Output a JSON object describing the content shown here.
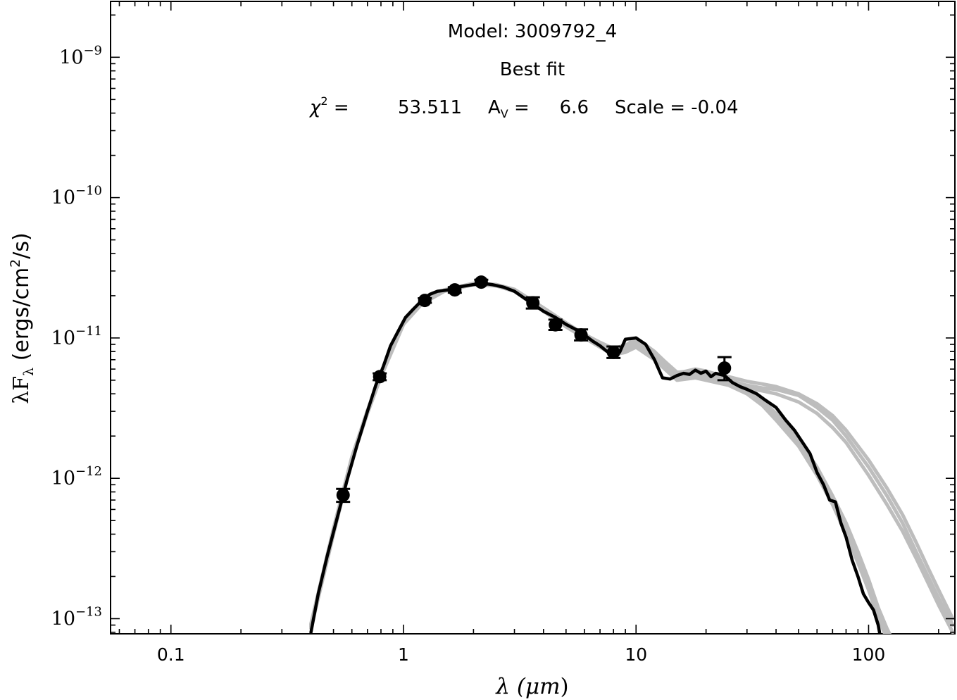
{
  "chart_data": {
    "type": "line",
    "title_lines": {
      "model_label": "Model: 3009792_4",
      "fit_label": "Best fit",
      "chi2_label": "χ",
      "chi2_exp": "2",
      "chi2_eq": " =",
      "chi2_value": "53.511",
      "av_label": "A",
      "av_sub": "V",
      "av_eq": " =",
      "av_value": "6.6",
      "scale_text": "Scale = -0.04"
    },
    "xlabel": {
      "prefix": "λ (",
      "unit": "μm",
      "suffix": ")"
    },
    "ylabel": {
      "main": "λF",
      "sub": "λ",
      "mid": " (ergs/cm",
      "sup": "2",
      "end": "/s)"
    },
    "xscale": "log",
    "yscale": "log",
    "xlim": [
      0.055,
      235
    ],
    "ylim": [
      7.8e-14,
      2.5e-09
    ],
    "x_ticks": [
      {
        "value": 0.1,
        "label": "0.1"
      },
      {
        "value": 1,
        "label": "1"
      },
      {
        "value": 10,
        "label": "10"
      },
      {
        "value": 100,
        "label": "100"
      }
    ],
    "y_ticks": [
      {
        "value": 1e-13,
        "base": "10",
        "exp": "−13"
      },
      {
        "value": 1e-12,
        "base": "10",
        "exp": "−12"
      },
      {
        "value": 1e-11,
        "base": "10",
        "exp": "−11"
      },
      {
        "value": 1e-10,
        "base": "10",
        "exp": "−10"
      },
      {
        "value": 1e-09,
        "base": "10",
        "exp": "−9"
      }
    ],
    "grid": false,
    "colors": {
      "best_fit": "#000000",
      "other_fits": "#bdbdbd",
      "points": "#000000"
    },
    "observed_points": [
      {
        "x": 0.55,
        "y": 7.6e-13,
        "yerr_lo": 6.8e-13,
        "yerr_hi": 8.4e-13
      },
      {
        "x": 0.79,
        "y": 5.3e-12,
        "yerr_lo": 5e-12,
        "yerr_hi": 5.6e-12
      },
      {
        "x": 1.235,
        "y": 1.85e-11,
        "yerr_lo": 1.78e-11,
        "yerr_hi": 1.92e-11
      },
      {
        "x": 1.662,
        "y": 2.2e-11,
        "yerr_lo": 2.1e-11,
        "yerr_hi": 2.3e-11
      },
      {
        "x": 2.159,
        "y": 2.5e-11,
        "yerr_lo": 2.4e-11,
        "yerr_hi": 2.6e-11
      },
      {
        "x": 3.6,
        "y": 1.78e-11,
        "yerr_lo": 1.62e-11,
        "yerr_hi": 1.95e-11
      },
      {
        "x": 4.5,
        "y": 1.24e-11,
        "yerr_lo": 1.14e-11,
        "yerr_hi": 1.35e-11
      },
      {
        "x": 5.8,
        "y": 1.05e-11,
        "yerr_lo": 9.6e-12,
        "yerr_hi": 1.15e-11
      },
      {
        "x": 8.0,
        "y": 7.9e-12,
        "yerr_lo": 7.2e-12,
        "yerr_hi": 8.7e-12
      },
      {
        "x": 24.0,
        "y": 6.1e-12,
        "yerr_lo": 5e-12,
        "yerr_hi": 7.3e-12
      }
    ],
    "best_fit": {
      "x": [
        0.4,
        0.43,
        0.47,
        0.52,
        0.57,
        0.63,
        0.7,
        0.76,
        0.82,
        0.88,
        0.95,
        1.02,
        1.1,
        1.2,
        1.3,
        1.4,
        1.55,
        1.7,
        1.85,
        2.0,
        2.2,
        2.4,
        2.7,
        3.0,
        3.5,
        4.0,
        4.5,
        5.0,
        5.5,
        6.0,
        6.5,
        7.0,
        7.5,
        8.0,
        8.5,
        9.0,
        10.0,
        11.0,
        12.0,
        13.0,
        14.0,
        15.0,
        16.0,
        17.0,
        18.0,
        19.0,
        20.0,
        21.0,
        22.0,
        24.0,
        26.0,
        28.0,
        30.0,
        33.0,
        36.0,
        40.0,
        44.0,
        48.0,
        52.0,
        56.0,
        60.0,
        64.0,
        68.0,
        72.0,
        76.0,
        80.0,
        85.0,
        90.0,
        95.0,
        100.0,
        105.0,
        110.0,
        115.0
      ],
      "y": [
        8e-14,
        1.5e-13,
        2.8e-13,
        5.3e-13,
        9.5e-13,
        1.7e-12,
        3e-12,
        4.6e-12,
        6.3e-12,
        8.8e-12,
        1.12e-11,
        1.4e-11,
        1.6e-11,
        1.85e-11,
        2.05e-11,
        2.15e-11,
        2.2e-11,
        2.3e-11,
        2.35e-11,
        2.4e-11,
        2.45e-11,
        2.4e-11,
        2.3e-11,
        2.15e-11,
        1.8e-11,
        1.55e-11,
        1.4e-11,
        1.25e-11,
        1.15e-11,
        1.05e-11,
        9.5e-12,
        8.8e-12,
        8e-12,
        7.7e-12,
        7.9e-12,
        9.8e-12,
        1e-11,
        9e-12,
        7e-12,
        5.2e-12,
        5.1e-12,
        5.4e-12,
        5.6e-12,
        5.5e-12,
        5.9e-12,
        5.6e-12,
        5.8e-12,
        5.3e-12,
        5.6e-12,
        5.4e-12,
        4.8e-12,
        4.5e-12,
        4.3e-12,
        4e-12,
        3.6e-12,
        3.2e-12,
        2.6e-12,
        2.2e-12,
        1.8e-12,
        1.5e-12,
        1.1e-12,
        9e-13,
        7e-13,
        6.8e-13,
        4.8e-13,
        3.8e-13,
        2.6e-13,
        2e-13,
        1.5e-13,
        1.3e-13,
        1.15e-13,
        9e-14,
        6e-14
      ]
    },
    "other_fits": [
      {
        "x": [
          0.4,
          0.5,
          0.6,
          0.7,
          0.8,
          1.0,
          1.2,
          1.5,
          2.0,
          2.5,
          3.0,
          4.0,
          5.0,
          6.0,
          7.0,
          8.0,
          9.0,
          10.0,
          12.0,
          15.0,
          18.0,
          20.0,
          25.0,
          30.0,
          35.0,
          40.0,
          50.0,
          60.0,
          70.0,
          80.0,
          90.0,
          100.0,
          110.0,
          120.0,
          130.0
        ],
        "y": [
          9e-14,
          4.3e-13,
          1.4e-12,
          3e-12,
          5.5e-12,
          1.3e-11,
          1.8e-11,
          2.2e-11,
          2.45e-11,
          2.4e-11,
          2.2e-11,
          1.6e-11,
          1.25e-11,
          1.05e-11,
          9.2e-12,
          8.2e-12,
          8.8e-12,
          1e-11,
          8e-12,
          5.6e-12,
          6e-12,
          5.8e-12,
          5.2e-12,
          4.4e-12,
          3.6e-12,
          2.9e-12,
          1.9e-12,
          1.2e-12,
          7.5e-13,
          4.8e-13,
          3e-13,
          1.9e-13,
          1.2e-13,
          8.5e-14,
          6.5e-14
        ]
      },
      {
        "x": [
          0.4,
          0.5,
          0.6,
          0.7,
          0.8,
          1.0,
          1.2,
          1.5,
          2.0,
          2.5,
          3.0,
          4.0,
          5.0,
          6.0,
          7.0,
          8.0,
          9.0,
          10.0,
          12.0,
          15.0,
          18.0,
          20.0,
          25.0,
          30.0,
          35.0,
          40.0,
          50.0,
          60.0,
          70.0,
          80.0,
          90.0,
          100.0,
          110.0,
          120.0
        ],
        "y": [
          8.5e-14,
          4e-13,
          1.35e-12,
          2.9e-12,
          5.3e-12,
          1.25e-11,
          1.75e-11,
          2.15e-11,
          2.4e-11,
          2.35e-11,
          2.15e-11,
          1.55e-11,
          1.2e-11,
          1e-11,
          8.6e-12,
          7.6e-12,
          7.9e-12,
          8.6e-12,
          7e-12,
          5e-12,
          5.2e-12,
          5e-12,
          4.6e-12,
          4e-12,
          3.3e-12,
          2.6e-12,
          1.7e-12,
          1.05e-12,
          6.5e-13,
          4e-13,
          2.5e-13,
          1.6e-13,
          1e-13,
          7.2e-14
        ]
      },
      {
        "x": [
          0.4,
          0.5,
          0.6,
          0.7,
          0.8,
          1.0,
          1.2,
          1.5,
          2.0,
          2.5,
          3.0,
          4.0,
          5.0,
          6.0,
          7.0,
          8.0,
          9.0,
          10.0,
          12.0,
          15.0,
          18.0,
          20.0,
          25.0,
          30.0,
          35.0,
          40.0,
          50.0,
          60.0,
          70.0,
          80.0,
          100.0,
          120.0,
          140.0,
          160.0,
          180.0,
          200.0,
          230.0
        ],
        "y": [
          9e-14,
          4.2e-13,
          1.4e-12,
          3e-12,
          5.4e-12,
          1.28e-11,
          1.78e-11,
          2.18e-11,
          2.42e-11,
          2.38e-11,
          2.2e-11,
          1.62e-11,
          1.26e-11,
          1.04e-11,
          9e-12,
          8e-12,
          8.4e-12,
          9.2e-12,
          7.6e-12,
          5.4e-12,
          5.6e-12,
          5.5e-12,
          5e-12,
          4.6e-12,
          4.4e-12,
          4.3e-12,
          3.9e-12,
          3.2e-12,
          2.6e-12,
          2e-12,
          1.2e-12,
          7.5e-13,
          4.8e-13,
          3e-13,
          2e-13,
          1.4e-13,
          9e-14
        ]
      },
      {
        "x": [
          0.4,
          0.5,
          0.6,
          0.7,
          0.8,
          1.0,
          1.2,
          1.5,
          2.0,
          2.5,
          3.0,
          4.0,
          5.0,
          6.0,
          7.0,
          8.0,
          9.0,
          10.0,
          12.0,
          15.0,
          18.0,
          20.0,
          25.0,
          30.0,
          35.0,
          40.0,
          50.0,
          60.0,
          70.0,
          80.0,
          100.0,
          120.0,
          140.0,
          160.0,
          180.0,
          200.0,
          230.0
        ],
        "y": [
          8.8e-14,
          4.1e-13,
          1.38e-12,
          2.95e-12,
          5.3e-12,
          1.26e-11,
          1.76e-11,
          2.16e-11,
          2.4e-11,
          2.36e-11,
          2.18e-11,
          1.58e-11,
          1.22e-11,
          1.02e-11,
          8.8e-12,
          7.8e-12,
          8.1e-12,
          8.9e-12,
          7.3e-12,
          5.2e-12,
          5.4e-12,
          5.3e-12,
          4.8e-12,
          4.4e-12,
          4.2e-12,
          4e-12,
          3.5e-12,
          2.9e-12,
          2.3e-12,
          1.8e-12,
          1.05e-12,
          6.5e-13,
          4.2e-13,
          2.7e-13,
          1.8e-13,
          1.25e-13,
          8e-14
        ]
      },
      {
        "x": [
          0.4,
          0.5,
          0.6,
          0.7,
          0.8,
          1.0,
          1.2,
          1.5,
          2.0,
          2.5,
          3.0,
          4.0,
          5.0,
          6.0,
          7.0,
          8.0,
          9.0,
          10.0,
          12.0,
          15.0,
          18.0,
          20.0,
          25.0,
          30.0,
          35.0,
          40.0,
          50.0,
          60.0,
          70.0,
          80.0,
          100.0,
          120.0,
          140.0,
          160.0,
          180.0,
          200.0,
          230.0
        ],
        "y": [
          9.2e-14,
          4.4e-13,
          1.42e-12,
          3.05e-12,
          5.5e-12,
          1.3e-11,
          1.8e-11,
          2.2e-11,
          2.44e-11,
          2.4e-11,
          2.22e-11,
          1.64e-11,
          1.28e-11,
          1.06e-11,
          9.3e-12,
          8.4e-12,
          8.9e-12,
          9.6e-12,
          7.9e-12,
          5.7e-12,
          5.8e-12,
          5.7e-12,
          5.3e-12,
          4.9e-12,
          4.7e-12,
          4.5e-12,
          4e-12,
          3.4e-12,
          2.8e-12,
          2.2e-12,
          1.35e-12,
          8.5e-13,
          5.5e-13,
          3.5e-13,
          2.3e-13,
          1.6e-13,
          1e-13
        ]
      },
      {
        "x": [
          0.4,
          0.5,
          0.6,
          0.7,
          0.8,
          1.0,
          1.2,
          1.5,
          2.0,
          2.5,
          3.0,
          4.0,
          5.0,
          6.0,
          7.0,
          8.0,
          9.0,
          10.0,
          12.0,
          15.0,
          18.0,
          20.0,
          25.0,
          30.0,
          35.0,
          40.0,
          50.0,
          60.0,
          70.0,
          80.0,
          90.0,
          100.0,
          110.0,
          120.0,
          130.0
        ],
        "y": [
          8.7e-14,
          4.1e-13,
          1.37e-12,
          2.95e-12,
          5.35e-12,
          1.27e-11,
          1.77e-11,
          2.17e-11,
          2.42e-11,
          2.37e-11,
          2.17e-11,
          1.57e-11,
          1.21e-11,
          1.01e-11,
          8.7e-12,
          7.7e-12,
          8e-12,
          8.8e-12,
          7.2e-12,
          5.1e-12,
          5.3e-12,
          5.1e-12,
          4.7e-12,
          4.1e-12,
          3.4e-12,
          2.7e-12,
          1.75e-12,
          1.1e-12,
          7e-13,
          4.3e-13,
          2.7e-13,
          1.7e-13,
          1.1e-13,
          8e-14,
          6e-14
        ]
      }
    ]
  }
}
